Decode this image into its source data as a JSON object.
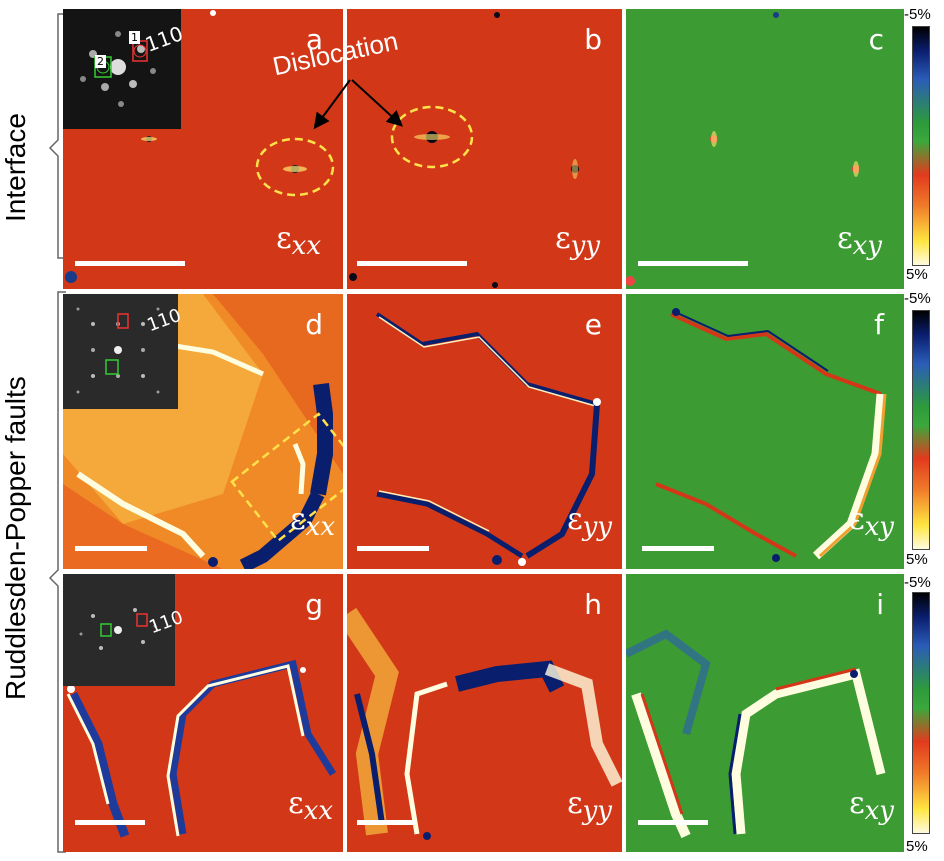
{
  "panels": {
    "a": {
      "label": "a",
      "strain": "ε",
      "sub": "xx"
    },
    "b": {
      "label": "b",
      "strain": "ε",
      "sub": "yy"
    },
    "c": {
      "label": "c",
      "strain": "ε",
      "sub": "xy"
    },
    "d": {
      "label": "d",
      "strain": "ε",
      "sub": "xx"
    },
    "e": {
      "label": "e",
      "strain": "ε",
      "sub": "yy"
    },
    "f": {
      "label": "f",
      "strain": "ε",
      "sub": "xy"
    },
    "g": {
      "label": "g",
      "strain": "ε",
      "sub": "xx"
    },
    "h": {
      "label": "h",
      "strain": "ε",
      "sub": "yy"
    },
    "i": {
      "label": "i",
      "strain": "ε",
      "sub": "xy"
    }
  },
  "rows": {
    "interface": "Interface",
    "rp_faults": "Ruddlesden-Popper faults"
  },
  "annotation": {
    "dislocation": "Dislocation"
  },
  "inset": {
    "reflection": "110",
    "spot1": "1",
    "spot2": "2"
  },
  "colorbar": {
    "min": "-5%",
    "max": "5%"
  },
  "colors": {
    "red": "#d8321a",
    "green": "#3c9b32",
    "orange": "#f08a28"
  }
}
